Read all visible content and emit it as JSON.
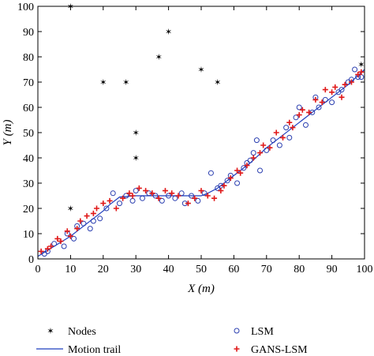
{
  "chart_data": {
    "type": "scatter",
    "xlabel": "X (m)",
    "ylabel": "Y (m)",
    "xlim": [
      0,
      100
    ],
    "ylim": [
      0,
      100
    ],
    "xticks": [
      0,
      10,
      20,
      30,
      40,
      50,
      60,
      70,
      80,
      90,
      100
    ],
    "yticks": [
      0,
      10,
      20,
      30,
      40,
      50,
      60,
      70,
      80,
      90,
      100
    ],
    "grid": false,
    "legend_placement": "bottom",
    "colors": {
      "nodes": "#000000",
      "trail": "#1f3fbf",
      "lsm": "#2b3fb0",
      "gans": "#e01818",
      "axis": "#000000"
    },
    "series": [
      {
        "name": "Nodes",
        "marker": "star",
        "x": [
          10,
          10,
          20,
          27,
          30,
          30,
          37,
          40,
          50,
          55,
          99
        ],
        "y": [
          100,
          20,
          70,
          70,
          50,
          40,
          80,
          90,
          75,
          70,
          77
        ]
      },
      {
        "name": "Motion trail",
        "marker": "line",
        "x": [
          0,
          5,
          10,
          15,
          20,
          22,
          25,
          30,
          40,
          50,
          52,
          55,
          60,
          65,
          70,
          75,
          80,
          85,
          90,
          95,
          100
        ],
        "y": [
          1,
          5,
          9,
          14,
          19,
          21.5,
          24.5,
          25,
          25,
          25,
          26,
          28,
          33,
          38,
          44,
          49,
          54,
          59,
          64,
          69,
          75
        ]
      },
      {
        "name": "LSM",
        "marker": "circle",
        "x": [
          2,
          3,
          5,
          8,
          9,
          11,
          12,
          14,
          16,
          17,
          19,
          21,
          23,
          25,
          27,
          29,
          30,
          32,
          34,
          36,
          38,
          40,
          42,
          44,
          45,
          47,
          49,
          51,
          53,
          55,
          56,
          58,
          59,
          61,
          63,
          64,
          65,
          66,
          67,
          68,
          70,
          72,
          74,
          76,
          77,
          79,
          80,
          82,
          84,
          85,
          86,
          88,
          90,
          92,
          93,
          95,
          96,
          97,
          98,
          99
        ],
        "y": [
          2,
          3,
          6,
          5,
          10,
          8,
          13,
          14,
          12,
          15,
          16,
          20,
          26,
          22,
          25,
          23,
          27,
          24,
          26,
          25,
          23,
          25,
          24,
          26,
          22,
          25,
          23,
          26,
          34,
          28,
          29,
          31,
          33,
          30,
          36,
          38,
          39,
          42,
          47,
          35,
          43,
          47,
          45,
          52,
          48,
          56,
          60,
          53,
          58,
          64,
          60,
          63,
          62,
          66,
          67,
          70,
          71,
          75,
          72,
          72
        ]
      },
      {
        "name": "GANS-LSM",
        "marker": "plus",
        "x": [
          1,
          3,
          4,
          6,
          7,
          9,
          10,
          12,
          13,
          15,
          17,
          18,
          20,
          22,
          24,
          26,
          28,
          29,
          31,
          33,
          35,
          37,
          39,
          41,
          43,
          46,
          48,
          50,
          52,
          54,
          56,
          57,
          59,
          61,
          62,
          64,
          66,
          68,
          69,
          71,
          73,
          75,
          77,
          78,
          80,
          81,
          83,
          85,
          87,
          88,
          90,
          91,
          93,
          94,
          96,
          98,
          99
        ],
        "y": [
          3,
          4,
          5,
          8,
          7,
          11,
          9,
          12,
          15,
          17,
          18,
          20,
          22,
          23,
          20,
          24,
          26,
          25,
          28,
          27,
          26,
          24,
          27,
          26,
          25,
          22,
          24,
          27,
          25,
          24,
          27,
          29,
          32,
          35,
          34,
          37,
          40,
          42,
          45,
          44,
          50,
          48,
          54,
          52,
          57,
          59,
          58,
          63,
          62,
          67,
          66,
          68,
          64,
          69,
          70,
          73,
          74
        ]
      }
    ]
  }
}
